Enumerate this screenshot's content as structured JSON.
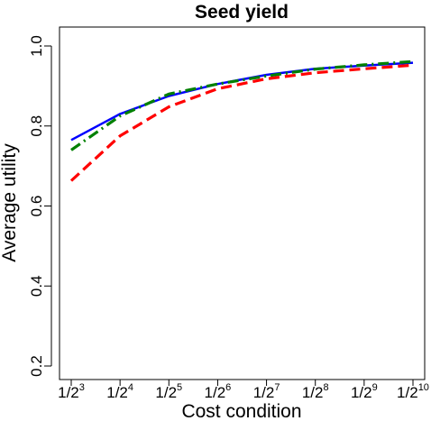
{
  "chart_data": {
    "type": "line",
    "title": "Seed yield",
    "xlabel": "Cost condition",
    "ylabel": "Average utility",
    "x": [
      3,
      4,
      5,
      6,
      7,
      8,
      9,
      10
    ],
    "x_tick_labels": [
      {
        "base": "1/2",
        "exp": "3"
      },
      {
        "base": "1/2",
        "exp": "4"
      },
      {
        "base": "1/2",
        "exp": "5"
      },
      {
        "base": "1/2",
        "exp": "6"
      },
      {
        "base": "1/2",
        "exp": "7"
      },
      {
        "base": "1/2",
        "exp": "8"
      },
      {
        "base": "1/2",
        "exp": "9"
      },
      {
        "base": "1/2",
        "exp": "10"
      }
    ],
    "y_ticks": [
      "0.2",
      "0.4",
      "0.6",
      "0.8",
      "1.0"
    ],
    "ylim": [
      0.2,
      1.0
    ],
    "grid": false,
    "legend": "none",
    "series": [
      {
        "color": "#0000ff",
        "dash": "solid",
        "values": [
          0.765,
          0.83,
          0.875,
          0.905,
          0.928,
          0.943,
          0.951,
          0.958
        ]
      },
      {
        "color": "#008000",
        "dash": "dashdot",
        "values": [
          0.74,
          0.825,
          0.88,
          0.905,
          0.925,
          0.942,
          0.953,
          0.961
        ]
      },
      {
        "color": "#ff0000",
        "dash": "dashed",
        "values": [
          0.663,
          0.775,
          0.848,
          0.893,
          0.918,
          0.933,
          0.943,
          0.952
        ]
      }
    ]
  }
}
